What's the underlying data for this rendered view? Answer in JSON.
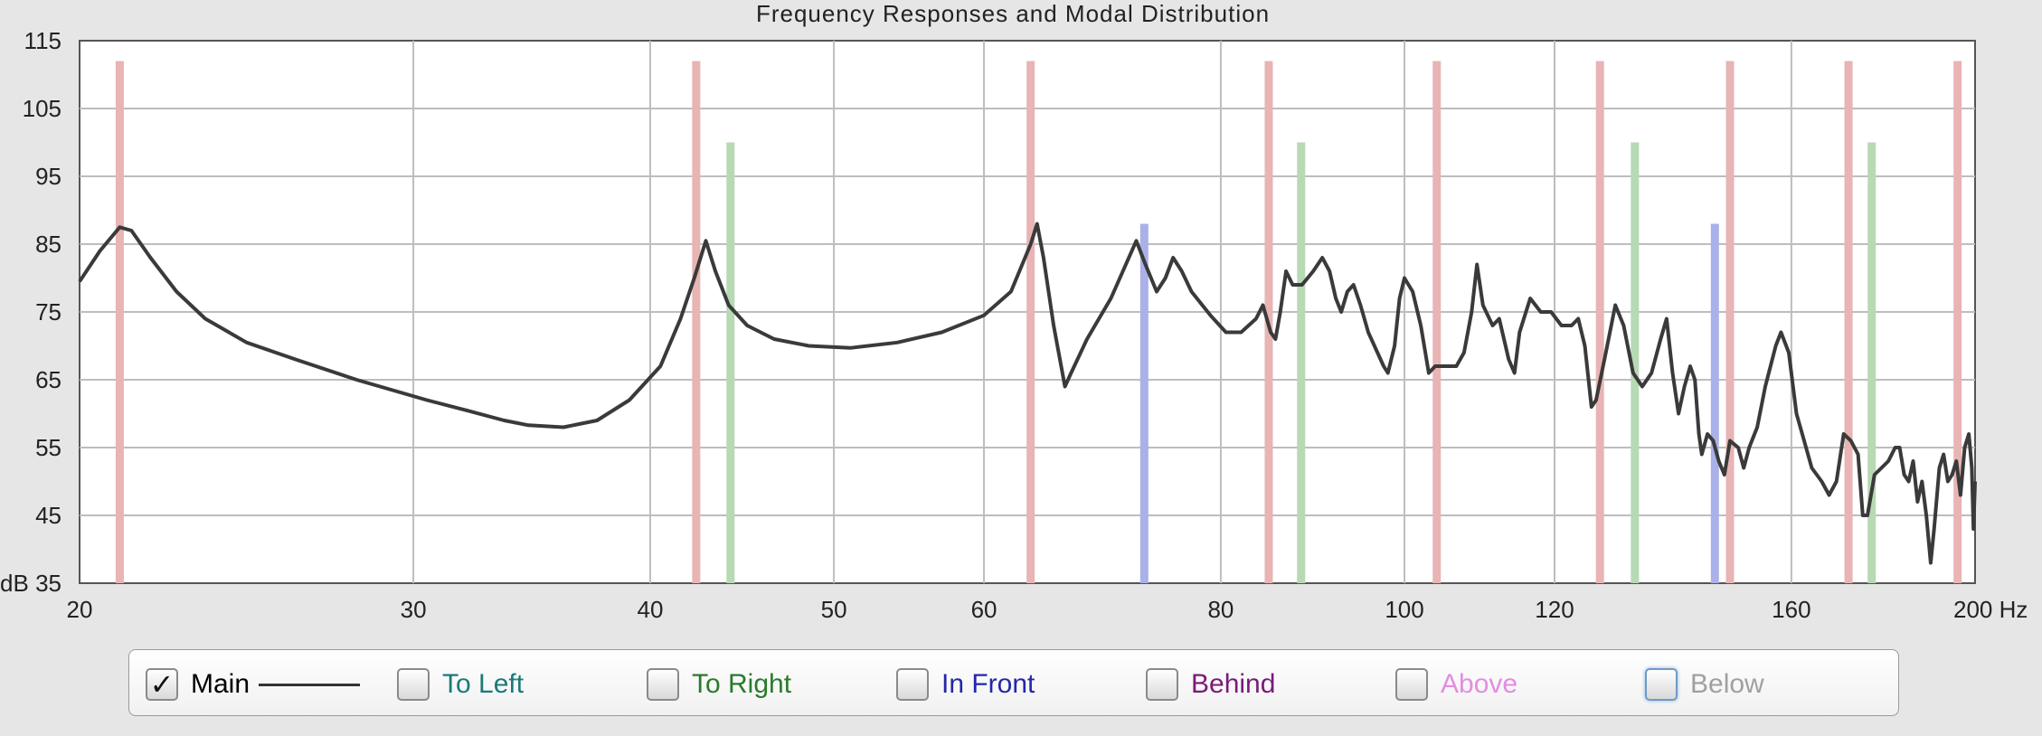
{
  "chart_data": {
    "type": "line",
    "title": "Frequency Responses and Modal Distribution",
    "xscale": "log",
    "xlim": [
      20,
      200
    ],
    "ylim": [
      35,
      115
    ],
    "x_ticks": [
      20,
      30,
      40,
      50,
      60,
      80,
      100,
      120,
      160,
      200
    ],
    "x_tick_labels": [
      "20",
      "30",
      "40",
      "50",
      "60",
      "80",
      "100",
      "120",
      "160",
      "200 Hz"
    ],
    "y_ticks": [
      35,
      45,
      55,
      65,
      75,
      85,
      95,
      105,
      115
    ],
    "y_tick_labels": [
      "dB 35",
      "45",
      "55",
      "65",
      "75",
      "85",
      "95",
      "105",
      "115"
    ],
    "grid": true,
    "series": [
      {
        "name": "Main",
        "color": "#3a3a3a",
        "points": [
          [
            20.0,
            79.5
          ],
          [
            20.5,
            84
          ],
          [
            21.0,
            87.5
          ],
          [
            21.3,
            87
          ],
          [
            21.8,
            83
          ],
          [
            22.5,
            78
          ],
          [
            23.3,
            74
          ],
          [
            24.5,
            70.5
          ],
          [
            26,
            68
          ],
          [
            28,
            65
          ],
          [
            30.5,
            62
          ],
          [
            32,
            60.5
          ],
          [
            33.5,
            59
          ],
          [
            34.5,
            58.3
          ],
          [
            36,
            58
          ],
          [
            37.5,
            59
          ],
          [
            39,
            62
          ],
          [
            40.5,
            67
          ],
          [
            41.5,
            74
          ],
          [
            42.2,
            80
          ],
          [
            42.8,
            85.5
          ],
          [
            43.3,
            81
          ],
          [
            44,
            76
          ],
          [
            45,
            73
          ],
          [
            46.5,
            71
          ],
          [
            48.5,
            70
          ],
          [
            51,
            69.7
          ],
          [
            54,
            70.5
          ],
          [
            57,
            72
          ],
          [
            60,
            74.5
          ],
          [
            62,
            78
          ],
          [
            63.5,
            85
          ],
          [
            64,
            88
          ],
          [
            64.5,
            83
          ],
          [
            65.3,
            73
          ],
          [
            66.2,
            64
          ],
          [
            66.7,
            66
          ],
          [
            68,
            71
          ],
          [
            70,
            77
          ],
          [
            72.2,
            85.5
          ],
          [
            73,
            82
          ],
          [
            74,
            78
          ],
          [
            74.8,
            80
          ],
          [
            75.5,
            83
          ],
          [
            76.3,
            81
          ],
          [
            77.2,
            78
          ],
          [
            79,
            74.5
          ],
          [
            80.5,
            72
          ],
          [
            82,
            72
          ],
          [
            83.5,
            74
          ],
          [
            84.2,
            76
          ],
          [
            85,
            72
          ],
          [
            85.5,
            71
          ],
          [
            86,
            75
          ],
          [
            86.6,
            81
          ],
          [
            87.3,
            79
          ],
          [
            88.3,
            79
          ],
          [
            89.5,
            81
          ],
          [
            90.5,
            83
          ],
          [
            91.3,
            81
          ],
          [
            92,
            77
          ],
          [
            92.6,
            75
          ],
          [
            93.3,
            78
          ],
          [
            94,
            79
          ],
          [
            94.8,
            76
          ],
          [
            95.7,
            72
          ],
          [
            97.5,
            67
          ],
          [
            98,
            66
          ],
          [
            98.8,
            70
          ],
          [
            99.4,
            77
          ],
          [
            100,
            80
          ],
          [
            101,
            78
          ],
          [
            102,
            73
          ],
          [
            103,
            66
          ],
          [
            103.8,
            67
          ],
          [
            105,
            67
          ],
          [
            106.5,
            67
          ],
          [
            107.5,
            69
          ],
          [
            108.5,
            75
          ],
          [
            109.2,
            82
          ],
          [
            110,
            76
          ],
          [
            111.3,
            73
          ],
          [
            112.2,
            74
          ],
          [
            113.5,
            68
          ],
          [
            114.3,
            66
          ],
          [
            115,
            72
          ],
          [
            116.5,
            77
          ],
          [
            118,
            75
          ],
          [
            119.5,
            75
          ],
          [
            121,
            73
          ],
          [
            122.5,
            73
          ],
          [
            123.5,
            74
          ],
          [
            124.5,
            70
          ],
          [
            125.5,
            61
          ],
          [
            126.2,
            62
          ],
          [
            127.5,
            68
          ],
          [
            129.2,
            76
          ],
          [
            130.5,
            73
          ],
          [
            132,
            66
          ],
          [
            133.5,
            64
          ],
          [
            135,
            66
          ],
          [
            136.5,
            71
          ],
          [
            137.5,
            74
          ],
          [
            138.5,
            66
          ],
          [
            139.5,
            60
          ],
          [
            140.5,
            64
          ],
          [
            141.5,
            67
          ],
          [
            142.3,
            65
          ],
          [
            143,
            57
          ],
          [
            143.5,
            54
          ],
          [
            144.5,
            57
          ],
          [
            145.5,
            56
          ],
          [
            146.5,
            53
          ],
          [
            147.5,
            51
          ],
          [
            148.5,
            56
          ],
          [
            150,
            55
          ],
          [
            151,
            52
          ],
          [
            152,
            55
          ],
          [
            153.5,
            58
          ],
          [
            155,
            64
          ],
          [
            157,
            70
          ],
          [
            158,
            72
          ],
          [
            159.5,
            69
          ],
          [
            161,
            60
          ],
          [
            162.5,
            56
          ],
          [
            164,
            52
          ],
          [
            166,
            50
          ],
          [
            167.5,
            48
          ],
          [
            169,
            50
          ],
          [
            170.5,
            57
          ],
          [
            172,
            56
          ],
          [
            173.5,
            54
          ],
          [
            174.5,
            45
          ],
          [
            175.5,
            45
          ],
          [
            177,
            51
          ],
          [
            178.5,
            52
          ],
          [
            180,
            53
          ],
          [
            181.5,
            55
          ],
          [
            182.5,
            55
          ],
          [
            183.5,
            51
          ],
          [
            184.5,
            50
          ],
          [
            185.5,
            53
          ],
          [
            186.5,
            47
          ],
          [
            187.5,
            50
          ],
          [
            188.5,
            45
          ],
          [
            189.5,
            38
          ],
          [
            190.3,
            43
          ],
          [
            191.5,
            52
          ],
          [
            192.5,
            54
          ],
          [
            193.5,
            50
          ],
          [
            194.5,
            51
          ],
          [
            195.5,
            53
          ],
          [
            196.5,
            48
          ],
          [
            197.5,
            55
          ],
          [
            198.5,
            57
          ],
          [
            199.2,
            52
          ],
          [
            199.6,
            43
          ],
          [
            200,
            50
          ]
        ]
      }
    ],
    "modes": [
      {
        "group": "red",
        "color": "#e8b4b4",
        "top": 112,
        "freqs": [
          21.0,
          42.3,
          63.5,
          84.8,
          104.0,
          126.8,
          148.5,
          171.5,
          195.8
        ]
      },
      {
        "group": "green",
        "color": "#b7d9b4",
        "top": 100,
        "freqs": [
          44.1,
          88.2,
          132.3,
          176.4
        ]
      },
      {
        "group": "blue",
        "color": "#aab0e8",
        "top": 88,
        "freqs": [
          72.9,
          145.8
        ]
      }
    ]
  },
  "legend": {
    "items": [
      {
        "label": "Main",
        "color": "#333333",
        "checked": true
      },
      {
        "label": "To Left",
        "color": "#1a7a7a",
        "checked": false
      },
      {
        "label": "To Right",
        "color": "#2b7a2b",
        "checked": false
      },
      {
        "label": "In Front",
        "color": "#2626a8",
        "checked": false
      },
      {
        "label": "Behind",
        "color": "#7a1a7a",
        "checked": false
      },
      {
        "label": "Above",
        "color": "#e48ce0",
        "checked": false
      },
      {
        "label": "Below",
        "color": "#a0a0a0",
        "checked": false
      }
    ],
    "check_glyph": "✓"
  }
}
